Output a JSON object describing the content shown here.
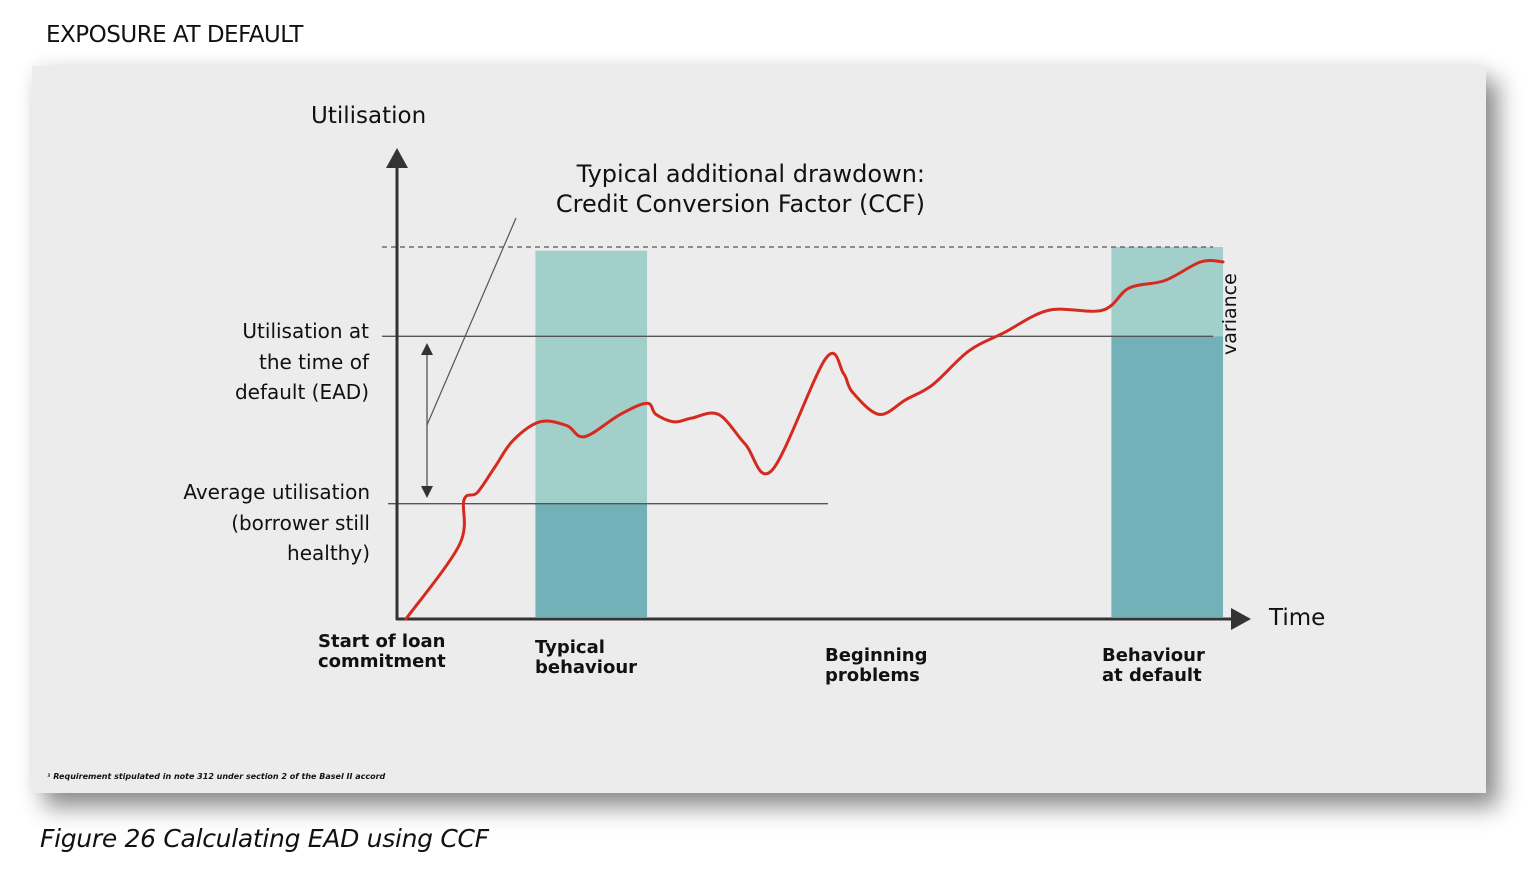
{
  "heading": "EXPOSURE AT DEFAULT",
  "caption": "Figure 26 Calculating EAD using CCF",
  "footnote": "¹ Requirement stipulated in note 312 under section 2 of the Basel II accord",
  "colors": {
    "panel_background": "#ececec",
    "curve": "#d42a20",
    "bar_light": "#a3cfcb",
    "bar_dark": "#72b1b7",
    "axis": "#333333",
    "reference_line": "#555555"
  },
  "chart_data": {
    "type": "line",
    "title": "Typical additional drawdown: Credit Conversion Factor (CCF)",
    "title_lines": [
      "Typical additional drawdown:",
      "Credit Conversion Factor (CCF)"
    ],
    "xlabel": "Time",
    "ylabel": "Utilisation",
    "grid": false,
    "reference_lines": [
      {
        "name": "ead",
        "label_lines": [
          "Utilisation at",
          "the time of",
          "default (EAD)"
        ],
        "level": 0.76
      },
      {
        "name": "average",
        "label_lines": [
          "Average utilisation",
          "(borrower still",
          "healthy)"
        ],
        "level": 0.31
      },
      {
        "name": "limit",
        "label_lines": [],
        "level": 1.0,
        "style": "dashed"
      }
    ],
    "phases": [
      {
        "label_lines": [
          "Start of loan",
          "commitment"
        ],
        "t": 0.0
      },
      {
        "label_lines": [
          "Typical",
          "behaviour"
        ],
        "t": 0.18
      },
      {
        "label_lines": [
          "Beginning",
          "problems"
        ],
        "t": 0.5
      },
      {
        "label_lines": [
          "Behaviour",
          "at default"
        ],
        "t": 0.85
      }
    ],
    "bars": [
      {
        "name": "typical-behaviour",
        "t_start": 0.155,
        "t_end": 0.28,
        "lower_level": 0.31,
        "upper_level": 0.99
      },
      {
        "name": "behaviour-at-default",
        "t_start": 0.8,
        "t_end": 0.925,
        "lower_level": 0.76,
        "upper_level": 1.0
      }
    ],
    "variance_label": "variance",
    "series": [
      {
        "name": "utilisation",
        "x": [
          0.01,
          0.07,
          0.075,
          0.09,
          0.11,
          0.13,
          0.16,
          0.19,
          0.21,
          0.25,
          0.28,
          0.29,
          0.31,
          0.33,
          0.36,
          0.39,
          0.42,
          0.48,
          0.5,
          0.51,
          0.54,
          0.57,
          0.6,
          0.64,
          0.68,
          0.73,
          0.79,
          0.82,
          0.86,
          0.9,
          0.925
        ],
        "y": [
          0.0,
          0.2,
          0.32,
          0.34,
          0.41,
          0.48,
          0.53,
          0.52,
          0.49,
          0.55,
          0.58,
          0.55,
          0.53,
          0.54,
          0.55,
          0.47,
          0.4,
          0.7,
          0.66,
          0.61,
          0.55,
          0.59,
          0.63,
          0.72,
          0.77,
          0.83,
          0.83,
          0.89,
          0.91,
          0.96,
          0.96
        ]
      }
    ]
  }
}
